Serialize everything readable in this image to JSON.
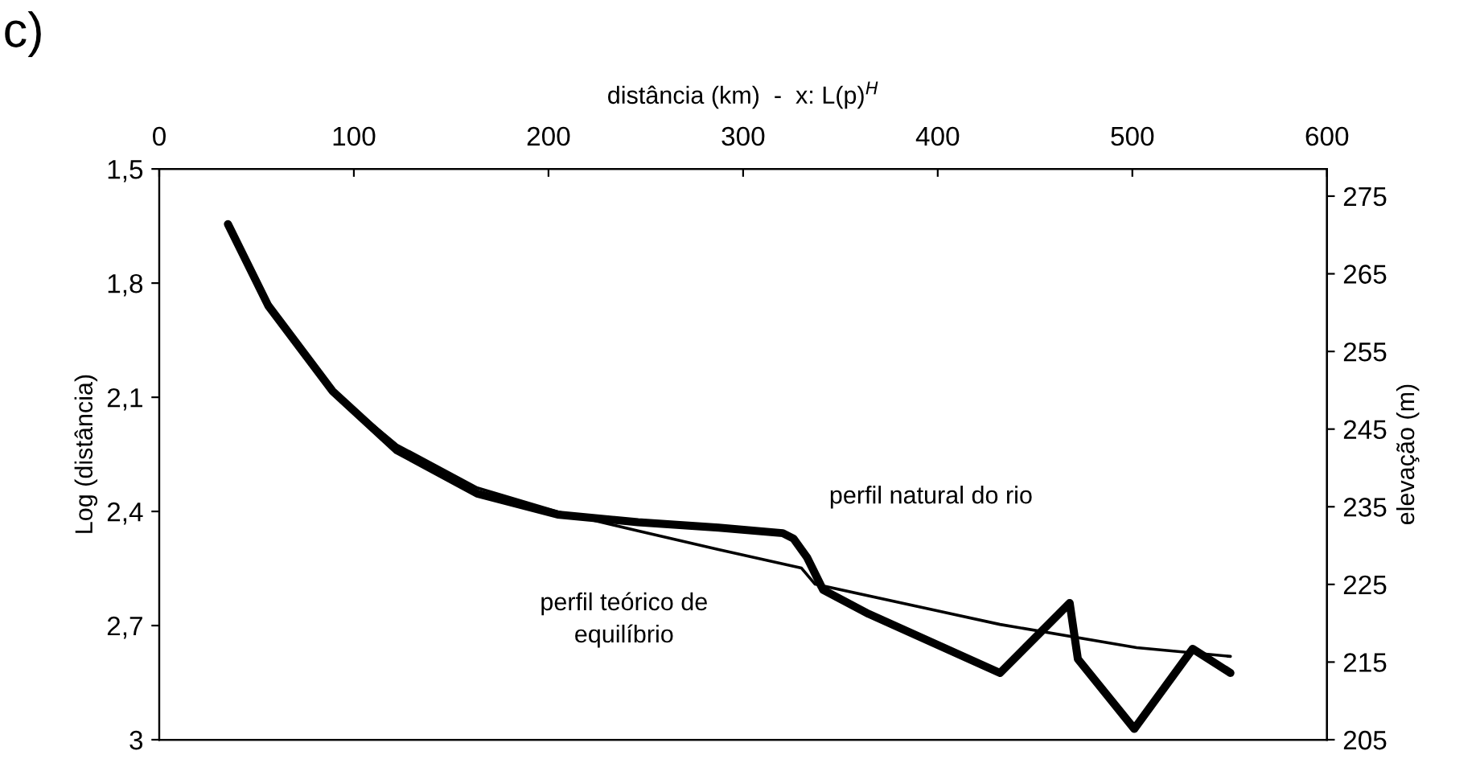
{
  "chart_data": {
    "type": "line",
    "xlabel": "distância (km)  -  x: L(p)$^{H}$",
    "ylabel": "Log (distância)",
    "y2label": "elevação (m)",
    "annotations": [
      "c)"
    ],
    "xlim": [
      0,
      600
    ],
    "xticks": [
      0,
      100,
      200,
      300,
      400,
      500,
      600
    ],
    "ylim": [
      3,
      1.5
    ],
    "yticks": [
      {
        "value": 1.5,
        "label": "1,5"
      },
      {
        "value": 1.8,
        "label": "1,8"
      },
      {
        "value": 2.1,
        "label": "2,1"
      },
      {
        "value": 2.4,
        "label": "2,4"
      },
      {
        "value": 2.7,
        "label": "2,7"
      },
      3
    ],
    "y2lim": [
      205,
      278.5
    ],
    "y2ticks": [
      205,
      215,
      225,
      235,
      245,
      255,
      265,
      275
    ],
    "grid": false,
    "legend": false,
    "marker": "none",
    "line_style": "solid",
    "series": [
      {
        "name": "perfil natural do rio",
        "color": "#000000",
        "axis": "y2",
        "x": [
          35.3,
          56,
          89,
          122,
          163.4,
          204.7,
          246,
          287.4,
          320.4,
          325.9,
          332.8,
          341.1,
          364.5,
          432,
          467.8,
          472,
          501,
          531,
          550.4
        ],
        "values": [
          271.4,
          260.9,
          249.9,
          242.3,
          236.7,
          234.0,
          233.0,
          232.3,
          231.6,
          230.9,
          228.5,
          224.3,
          221.2,
          213.6,
          222.6,
          215.4,
          206.4,
          216.7,
          213.6
        ]
      },
      {
        "name": "perfil teórico de\nequilíbrio",
        "color": "#000000",
        "x": [
          35.3,
          56,
          89,
          122,
          163.4,
          204.7,
          246,
          287.4,
          330,
          336.9,
          432,
          502.2,
          550.4
        ],
        "values": [
          1.645,
          1.859,
          2.084,
          2.225,
          2.338,
          2.401,
          2.451,
          2.5,
          2.549,
          2.591,
          2.697,
          2.758,
          2.781
        ]
      }
    ]
  }
}
